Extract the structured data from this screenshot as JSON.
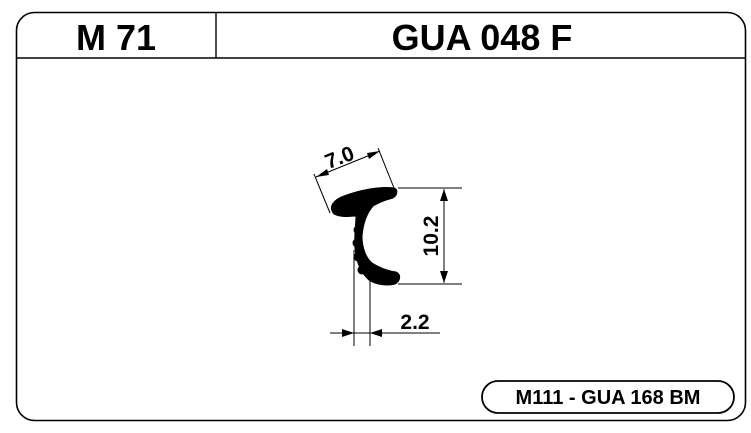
{
  "header": {
    "model_code": "M 71",
    "part_code": "GUA 048 F"
  },
  "drawing": {
    "dimensions": {
      "width_label": "7.0",
      "height_label": "10.2",
      "thickness_label": "2.2"
    }
  },
  "footer": {
    "reference": "M111 - GUA 168 BM"
  },
  "colors": {
    "ink": "#000000",
    "paper": "#ffffff"
  }
}
